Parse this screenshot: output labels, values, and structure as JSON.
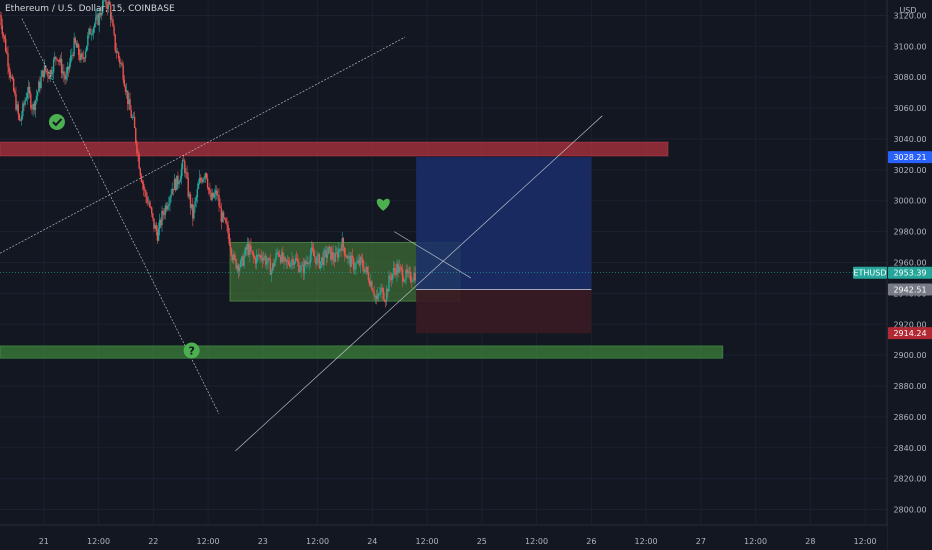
{
  "header": {
    "title": "Ethereum / U.S. Dollar, 15, COINBASE"
  },
  "colors": {
    "background": "#131722",
    "up": "#26a69a",
    "down": "#ef5350",
    "resistance_zone": "#b2323f",
    "support_zone": "#3a7a3a",
    "consolidation_box": "#4c8a3a",
    "target_zone": "#1b2e6b",
    "stop_zone": "#3a1a24",
    "target_tag": "#2962ff",
    "stop_tag": "#b22833",
    "last_price_tag": "#26a69a",
    "entry_tag": "#787b86",
    "icon_green": "#4caf50"
  },
  "chart_data": {
    "type": "candlestick",
    "symbol": "ETHUSD",
    "price_axis_unit": "USD",
    "ylim": [
      2790,
      3130
    ],
    "y_ticks": [
      3120,
      3100,
      3080,
      3060,
      3040,
      3020,
      3000,
      2980,
      2960,
      2940,
      2920,
      2900,
      2880,
      2860,
      2840,
      2820,
      2800
    ],
    "y_tick_labels": [
      "3120.00",
      "3100.00",
      "3080.00",
      "3060.00",
      "3040.00",
      "3020.00",
      "3000.00",
      "2980.00",
      "2960.00",
      "2940.00",
      "2920.00",
      "2900.00",
      "2880.00",
      "2860.00",
      "2840.00",
      "2820.00",
      "2800.00"
    ],
    "xlim_days": [
      20.6,
      28.7
    ],
    "x_ticks": [
      {
        "day": 21.0,
        "label": "21"
      },
      {
        "day": 21.5,
        "label": "12:00"
      },
      {
        "day": 22.0,
        "label": "22"
      },
      {
        "day": 22.5,
        "label": "12:00"
      },
      {
        "day": 23.0,
        "label": "23"
      },
      {
        "day": 23.5,
        "label": "12:00"
      },
      {
        "day": 24.0,
        "label": "24"
      },
      {
        "day": 24.5,
        "label": "12:00"
      },
      {
        "day": 25.0,
        "label": "25"
      },
      {
        "day": 25.5,
        "label": "12:00"
      },
      {
        "day": 26.0,
        "label": "26"
      },
      {
        "day": 26.5,
        "label": "12:00"
      },
      {
        "day": 27.0,
        "label": "27"
      },
      {
        "day": 27.5,
        "label": "12:00"
      },
      {
        "day": 28.0,
        "label": "28"
      },
      {
        "day": 28.5,
        "label": "12:00"
      }
    ],
    "price_path": [
      [
        20.6,
        3120
      ],
      [
        20.7,
        3080
      ],
      [
        20.78,
        3050
      ],
      [
        20.85,
        3072
      ],
      [
        20.9,
        3060
      ],
      [
        21.0,
        3085
      ],
      [
        21.05,
        3082
      ],
      [
        21.12,
        3095
      ],
      [
        21.2,
        3078
      ],
      [
        21.28,
        3102
      ],
      [
        21.35,
        3090
      ],
      [
        21.42,
        3110
      ],
      [
        21.5,
        3118
      ],
      [
        21.55,
        3130
      ],
      [
        21.6,
        3126
      ],
      [
        21.65,
        3100
      ],
      [
        21.72,
        3085
      ],
      [
        21.78,
        3060
      ],
      [
        21.82,
        3050
      ],
      [
        21.88,
        3020
      ],
      [
        21.92,
        3005
      ],
      [
        21.96,
        2998
      ],
      [
        22.0,
        2985
      ],
      [
        22.04,
        2978
      ],
      [
        22.08,
        2990
      ],
      [
        22.12,
        2998
      ],
      [
        22.18,
        3010
      ],
      [
        22.22,
        3012
      ],
      [
        22.28,
        3025
      ],
      [
        22.32,
        3005
      ],
      [
        22.36,
        2990
      ],
      [
        22.42,
        3012
      ],
      [
        22.48,
        3020
      ],
      [
        22.52,
        3000
      ],
      [
        22.58,
        3005
      ],
      [
        22.62,
        2990
      ],
      [
        22.68,
        2980
      ],
      [
        22.74,
        2960
      ],
      [
        22.8,
        2958
      ],
      [
        22.86,
        2970
      ],
      [
        22.92,
        2962
      ],
      [
        23.0,
        2965
      ],
      [
        23.08,
        2955
      ],
      [
        23.14,
        2968
      ],
      [
        23.2,
        2958
      ],
      [
        23.28,
        2963
      ],
      [
        23.36,
        2955
      ],
      [
        23.44,
        2966
      ],
      [
        23.52,
        2960
      ],
      [
        23.6,
        2967
      ],
      [
        23.66,
        2962
      ],
      [
        23.72,
        2973
      ],
      [
        23.78,
        2962
      ],
      [
        23.84,
        2958
      ],
      [
        23.9,
        2960
      ],
      [
        23.96,
        2952
      ],
      [
        24.0,
        2945
      ],
      [
        24.04,
        2935
      ],
      [
        24.08,
        2942
      ],
      [
        24.12,
        2938
      ],
      [
        24.16,
        2950
      ],
      [
        24.22,
        2957
      ],
      [
        24.28,
        2952
      ],
      [
        24.34,
        2950
      ],
      [
        24.4,
        2953.39
      ]
    ],
    "last_price": {
      "symbol": "ETHUSD",
      "value": 2953.39,
      "label": "2953.39"
    },
    "zones": [
      {
        "name": "resistance",
        "x": [
          20.6,
          26.7
        ],
        "y": [
          3029,
          3038
        ]
      },
      {
        "name": "support",
        "x": [
          20.6,
          27.2
        ],
        "y": [
          2898,
          2906
        ]
      },
      {
        "name": "consolidation",
        "x": [
          22.7,
          24.8
        ],
        "y": [
          2935,
          2973
        ]
      }
    ],
    "position": {
      "type": "long",
      "x": [
        24.4,
        26.0
      ],
      "entry": {
        "value": 2942.51,
        "label": "2942.51"
      },
      "target": {
        "value": 3028.21,
        "label": "3028.21"
      },
      "stop": {
        "value": 2914.24,
        "label": "2914.24"
      }
    },
    "trendlines": [
      {
        "name": "descending-line",
        "from": [
          20.8,
          3118
        ],
        "to": [
          22.6,
          2862
        ]
      },
      {
        "name": "ascending-channel-upper",
        "from": [
          20.6,
          2966
        ],
        "to": [
          24.3,
          3106
        ]
      },
      {
        "name": "ascending-support",
        "from": [
          22.75,
          2838
        ],
        "to": [
          26.1,
          3055
        ]
      },
      {
        "name": "pennant-upper",
        "from": [
          24.2,
          2980
        ],
        "to": [
          24.9,
          2950
        ]
      }
    ],
    "annotations": [
      {
        "name": "check-icon",
        "day": 21.12,
        "price": 3051
      },
      {
        "name": "heart-icon",
        "day": 24.1,
        "price": 2998
      },
      {
        "name": "question-icon",
        "day": 22.35,
        "price": 2903
      }
    ]
  }
}
